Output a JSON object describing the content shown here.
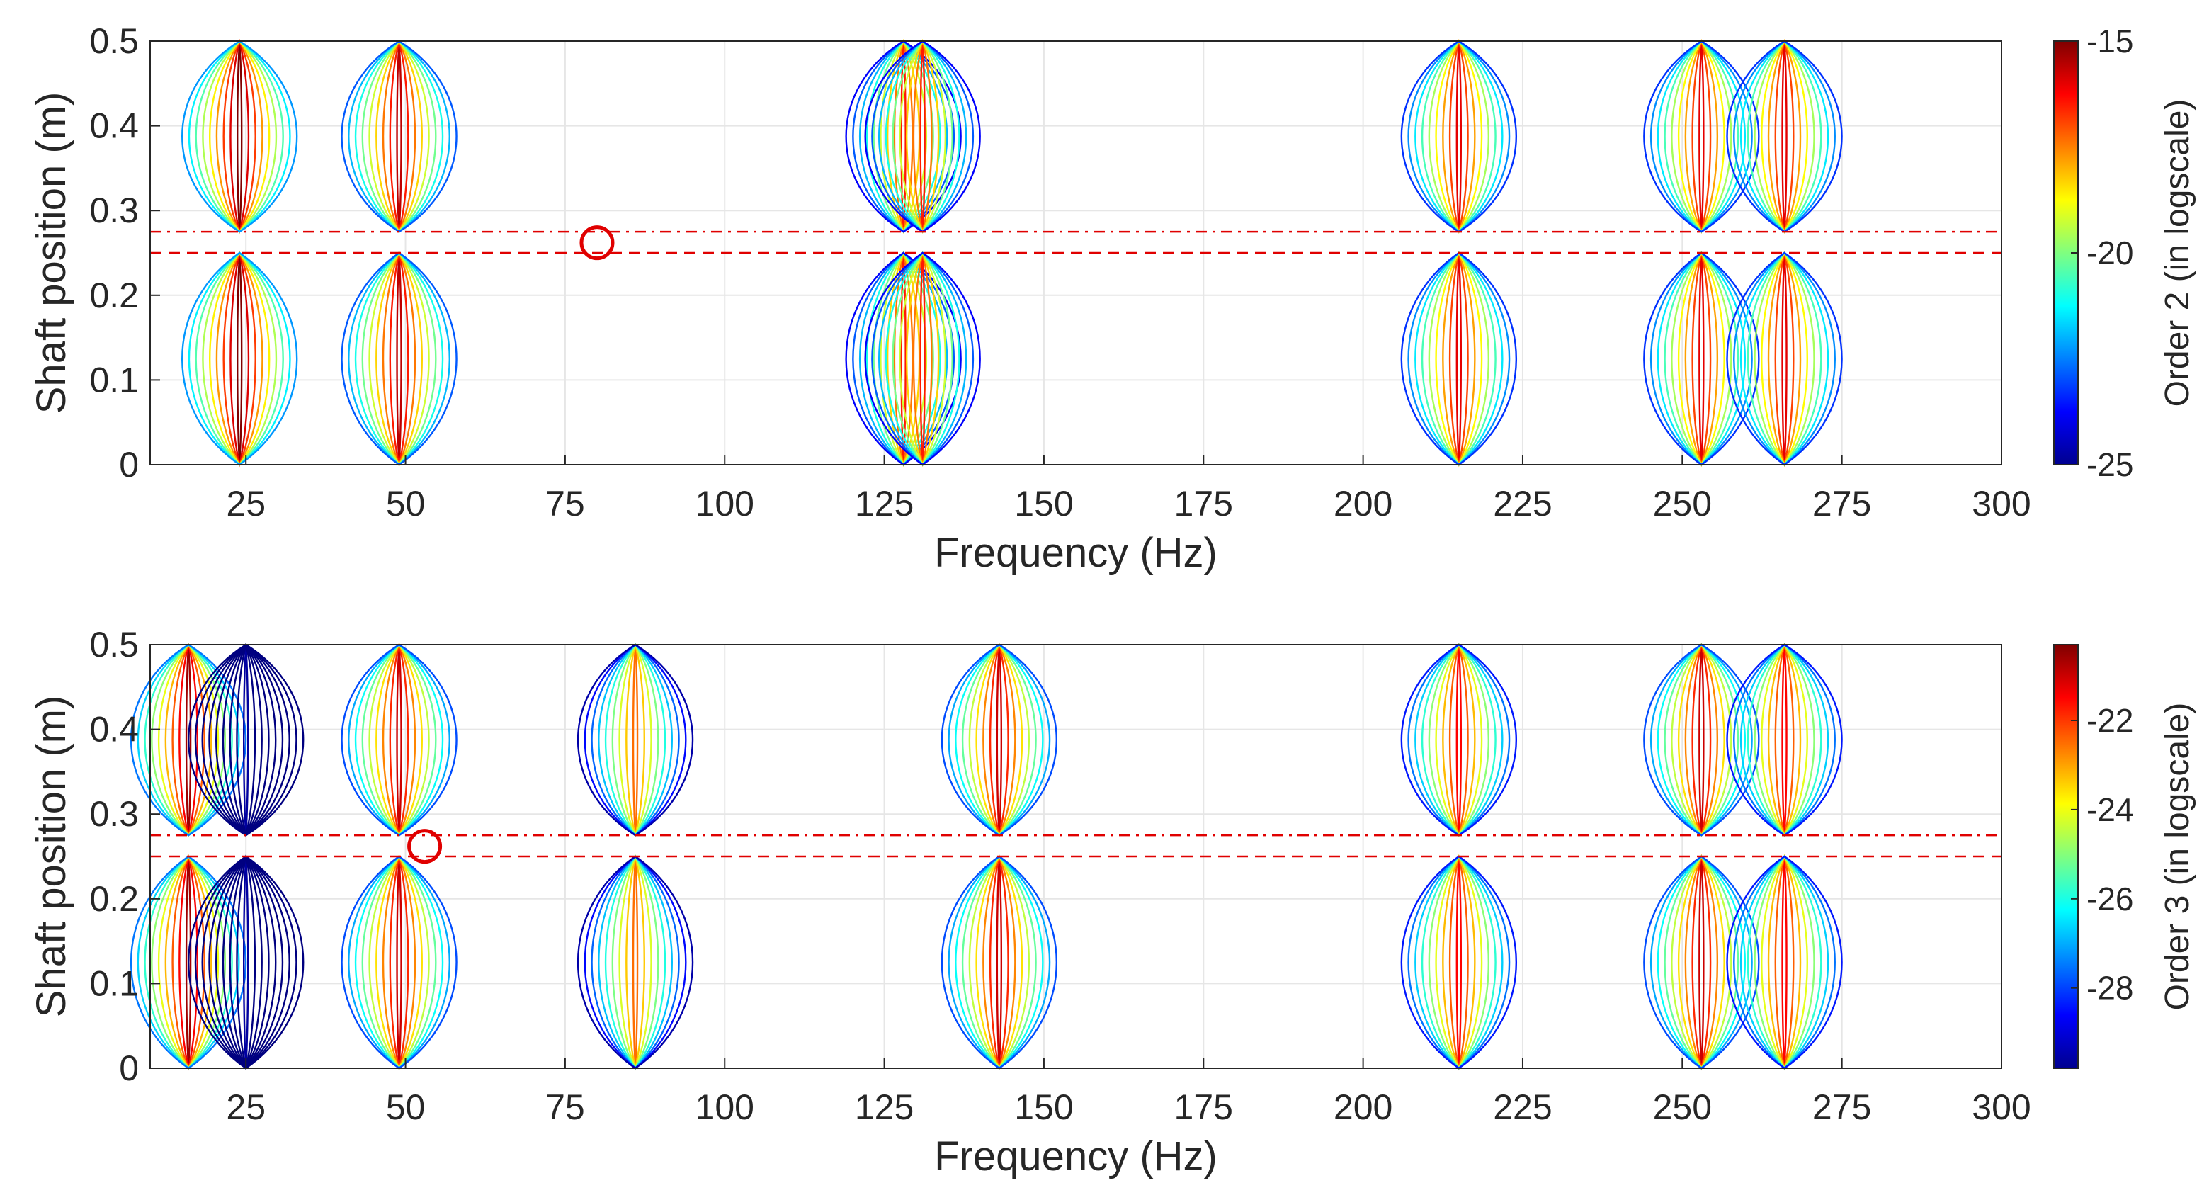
{
  "chart_data": [
    {
      "type": "contour",
      "title": "",
      "xlabel": "Frequency (Hz)",
      "ylabel": "Shaft position (m)",
      "xlim": [
        10,
        300
      ],
      "ylim": [
        0,
        0.5
      ],
      "xticks": [
        25,
        50,
        75,
        100,
        125,
        150,
        175,
        200,
        225,
        250,
        275,
        300
      ],
      "yticks": [
        0,
        0.1,
        0.2,
        0.3,
        0.4,
        0.5
      ],
      "xtick_labels": [
        "25",
        "50",
        "75",
        "100",
        "125",
        "150",
        "175",
        "200",
        "225",
        "250",
        "275",
        "300"
      ],
      "ytick_labels": [
        "0",
        "0.1",
        "0.2",
        "0.3",
        "0.4",
        "0.5"
      ],
      "grid": true,
      "colorbar": {
        "label": "Order 2 (in logscale)",
        "range": [
          -25,
          -15
        ],
        "ticks": [
          -25,
          -20,
          -15
        ],
        "tick_labels": [
          "-25",
          "-20",
          "-15"
        ],
        "colormap": "jet"
      },
      "reference_lines": [
        0.25,
        0.275
      ],
      "marker": {
        "x": 80,
        "y": 0.262,
        "label": "circled point"
      },
      "ridges": [
        {
          "freq": 24,
          "level": -15
        },
        {
          "freq": 49,
          "level": -15.6
        },
        {
          "freq": 128,
          "level": -16.5
        },
        {
          "freq": 131,
          "level": -16.5
        },
        {
          "freq": 215,
          "level": -16
        },
        {
          "freq": 253,
          "level": -16
        },
        {
          "freq": 266,
          "level": -16
        }
      ]
    },
    {
      "type": "contour",
      "title": "",
      "xlabel": "Frequency (Hz)",
      "ylabel": "Shaft position (m)",
      "xlim": [
        10,
        300
      ],
      "ylim": [
        0,
        0.5
      ],
      "xticks": [
        25,
        50,
        75,
        100,
        125,
        150,
        175,
        200,
        225,
        250,
        275,
        300
      ],
      "yticks": [
        0,
        0.1,
        0.2,
        0.3,
        0.4,
        0.5
      ],
      "xtick_labels": [
        "25",
        "50",
        "75",
        "100",
        "125",
        "150",
        "175",
        "200",
        "225",
        "250",
        "275",
        "300"
      ],
      "ytick_labels": [
        "0",
        "0.1",
        "0.2",
        "0.3",
        "0.4",
        "0.5"
      ],
      "grid": true,
      "colorbar": {
        "label": "Order 3 (in logscale)",
        "range": [
          -29.8,
          -20.3
        ],
        "ticks": [
          -28,
          -26,
          -24,
          -22
        ],
        "tick_labels": [
          "-28",
          "-26",
          "-24",
          "-22"
        ],
        "colormap": "jet"
      },
      "reference_lines": [
        0.25,
        0.275
      ],
      "marker": {
        "x": 53,
        "y": 0.262,
        "label": "circled point"
      },
      "ridges": [
        {
          "freq": 16,
          "level": -20.6
        },
        {
          "freq": 25,
          "level": -29.5
        },
        {
          "freq": 49,
          "level": -21
        },
        {
          "freq": 86,
          "level": -22.5
        },
        {
          "freq": 143,
          "level": -21
        },
        {
          "freq": 215,
          "level": -21.5
        },
        {
          "freq": 253,
          "level": -21
        },
        {
          "freq": 266,
          "level": -21.5
        }
      ]
    }
  ]
}
